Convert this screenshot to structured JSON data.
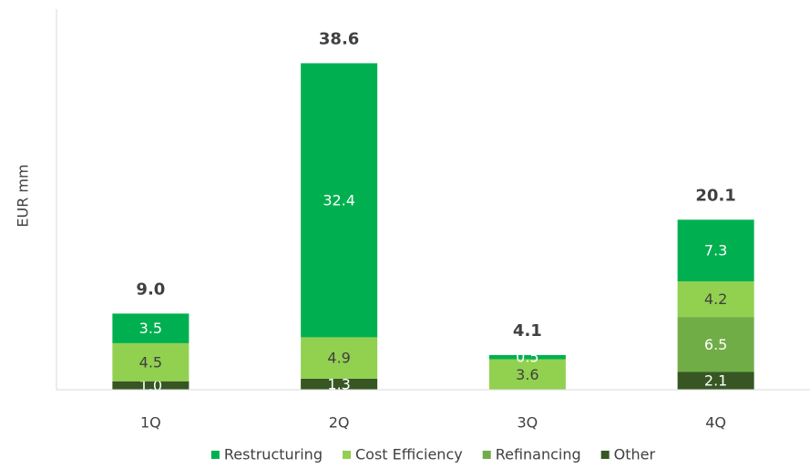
{
  "chart_data": {
    "type": "stacked_bar",
    "y_label": "EUR mm",
    "categories": [
      "1Q",
      "2Q",
      "3Q",
      "4Q"
    ],
    "series": [
      {
        "name": "Restructuring",
        "color": "#00b050",
        "values": [
          3.5,
          32.4,
          0.5,
          7.3
        ],
        "value_labels": [
          "3.5",
          "32.4",
          "0.5",
          "7.3"
        ]
      },
      {
        "name": "Cost Efficiency",
        "color": "#92d050",
        "values": [
          4.5,
          4.9,
          3.6,
          4.2
        ],
        "value_labels": [
          "4.5",
          "4.9",
          "3.6",
          "4.2"
        ]
      },
      {
        "name": "Refinancing",
        "color": "#70ad47",
        "values": [
          null,
          null,
          null,
          6.5
        ],
        "value_labels": [
          null,
          null,
          null,
          "6.5"
        ]
      },
      {
        "name": "Other",
        "color": "#375623",
        "values": [
          1.0,
          1.3,
          null,
          2.1
        ],
        "value_labels": [
          "1.0",
          "1.3",
          null,
          "2.1"
        ]
      }
    ],
    "totals": {
      "values": [
        9.0,
        38.6,
        4.1,
        20.1
      ],
      "value_labels": [
        "9.0",
        "38.6",
        "4.1",
        "20.1"
      ]
    },
    "ylim": [
      0,
      45
    ],
    "legend": "bottom"
  }
}
